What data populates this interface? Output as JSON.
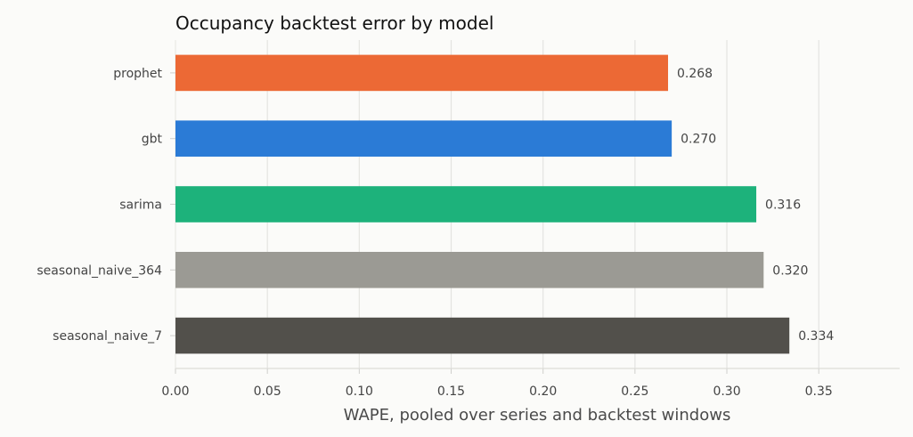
{
  "chart_data": {
    "type": "bar",
    "orientation": "horizontal",
    "title": "Occupancy backtest error by model",
    "xlabel": "WAPE, pooled over series and backtest windows",
    "ylabel": "",
    "xlim": [
      0,
      0.394
    ],
    "xticks": [
      "0.00",
      "0.05",
      "0.10",
      "0.15",
      "0.20",
      "0.25",
      "0.30",
      "0.35"
    ],
    "grid": "vertical",
    "categories": [
      "prophet",
      "gbt",
      "sarima",
      "seasonal_naive_364",
      "seasonal_naive_7"
    ],
    "values": [
      0.268,
      0.27,
      0.316,
      0.32,
      0.334
    ],
    "value_labels": [
      "0.268",
      "0.270",
      "0.316",
      "0.320",
      "0.334"
    ],
    "colors": [
      "#ec6935",
      "#2b7bd6",
      "#1db27b",
      "#9b9a94",
      "#52504b"
    ]
  }
}
